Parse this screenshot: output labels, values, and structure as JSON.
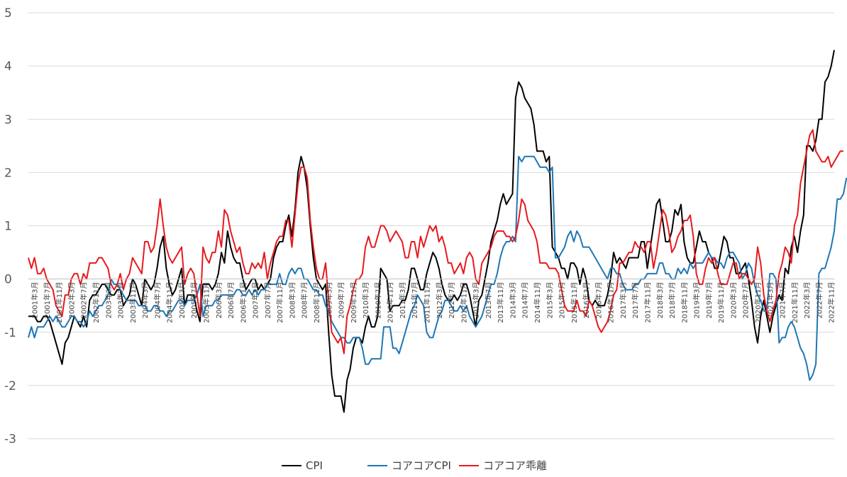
{
  "chart_data": {
    "type": "line",
    "ylim": [
      -3,
      5
    ],
    "yticks": [
      -3,
      -2,
      -1,
      0,
      1,
      2,
      3,
      4,
      5
    ],
    "grid": "horizontal",
    "legend_position": "bottom",
    "x_labels": [
      "2001年3月",
      "2001年7月",
      "2001年11月",
      "2002年3月",
      "2002年7月",
      "2002年11月",
      "2003年3月",
      "2003年7月",
      "2003年11月",
      "2004年3月",
      "2004年7月",
      "2004年11月",
      "2005年3月",
      "2005年7月",
      "2005年11月",
      "2006年3月",
      "2006年7月",
      "2006年11月",
      "2007年3月",
      "2007年7月",
      "2007年11月",
      "2008年3月",
      "2008年7月",
      "2008年11月",
      "2009年3月",
      "2009年7月",
      "2009年11月",
      "2010年3月",
      "2010年7月",
      "2010年11月",
      "2011年3月",
      "2011年7月",
      "2011年11月",
      "2012年3月",
      "2012年7月",
      "2012年11月",
      "2013年3月",
      "2013年7月",
      "2013年11月",
      "2014年3月",
      "2014年7月",
      "2014年11月",
      "2015年3月",
      "2015年7月",
      "2015年11月",
      "2016年3月",
      "2016年7月",
      "2016年11月",
      "2017年3月",
      "2017年7月",
      "2017年11月",
      "2018年3月",
      "2018年7月",
      "2018年11月",
      "2019年3月",
      "2019年7月",
      "2019年11月",
      "2020年3月",
      "2020年7月",
      "2020年11月",
      "2021年3月",
      "2021年7月",
      "2021年11月",
      "2022年3月",
      "2022年7月",
      "2022年11月"
    ],
    "x_label_start_index": 2,
    "x_label_step": 4,
    "series": [
      {
        "name": "CPI",
        "color": "#000000",
        "values": [
          -0.7,
          -0.7,
          -0.7,
          -0.8,
          -0.8,
          -0.7,
          -0.7,
          -0.8,
          -1.0,
          -1.2,
          -1.4,
          -1.6,
          -1.2,
          -1.1,
          -0.9,
          -0.7,
          -0.8,
          -0.9,
          -0.7,
          -0.9,
          -0.4,
          -0.3,
          -0.3,
          -0.2,
          -0.1,
          -0.1,
          -0.2,
          -0.3,
          -0.3,
          -0.2,
          -0.2,
          -0.5,
          -0.4,
          -0.3,
          0.0,
          -0.1,
          -0.3,
          -0.5,
          0.0,
          -0.1,
          -0.2,
          -0.1,
          0.2,
          0.6,
          0.8,
          0.2,
          -0.1,
          -0.3,
          -0.2,
          0.0,
          0.2,
          -0.5,
          -0.3,
          -0.3,
          -0.3,
          -0.6,
          -0.8,
          -0.1,
          -0.1,
          -0.1,
          -0.2,
          -0.1,
          0.1,
          0.5,
          0.3,
          0.9,
          0.6,
          0.4,
          0.3,
          0.3,
          0.0,
          -0.2,
          -0.1,
          0.0,
          0.0,
          -0.2,
          -0.1,
          -0.2,
          -0.1,
          0.0,
          0.4,
          0.6,
          0.7,
          0.7,
          1.0,
          1.2,
          0.8,
          1.3,
          2.0,
          2.3,
          2.1,
          1.7,
          1.0,
          0.4,
          0.0,
          -0.1,
          -0.2,
          -0.1,
          -1.0,
          -1.8,
          -2.2,
          -2.2,
          -2.2,
          -2.5,
          -1.9,
          -1.7,
          -1.3,
          -1.1,
          -1.1,
          -1.2,
          -0.9,
          -0.7,
          -0.9,
          -0.9,
          -0.7,
          0.2,
          0.1,
          0.0,
          -0.6,
          -0.5,
          -0.5,
          -0.5,
          -0.4,
          -0.4,
          -0.2,
          0.2,
          0.2,
          0.0,
          -0.2,
          -0.2,
          0.1,
          0.3,
          0.5,
          0.4,
          0.2,
          -0.1,
          -0.3,
          -0.4,
          -0.4,
          -0.3,
          -0.4,
          -0.3,
          -0.1,
          -0.1,
          -0.3,
          -0.6,
          -0.9,
          -0.4,
          -0.3,
          0.0,
          0.3,
          0.7,
          0.9,
          1.1,
          1.4,
          1.6,
          1.4,
          1.5,
          1.6,
          3.4,
          3.7,
          3.6,
          3.4,
          3.3,
          3.2,
          2.9,
          2.4,
          2.4,
          2.4,
          2.2,
          2.3,
          0.6,
          0.5,
          0.4,
          0.2,
          0.2,
          0.0,
          0.3,
          0.3,
          0.2,
          -0.1,
          0.2,
          0.0,
          -0.4,
          -0.5,
          -0.4,
          -0.5,
          -0.5,
          -0.5,
          -0.3,
          0.0,
          0.5,
          0.3,
          0.4,
          0.3,
          0.2,
          0.4,
          0.4,
          0.4,
          0.4,
          0.7,
          0.7,
          0.2,
          0.6,
          1.0,
          1.4,
          1.5,
          1.1,
          0.7,
          0.7,
          0.9,
          1.3,
          1.2,
          1.4,
          0.7,
          0.4,
          0.3,
          0.3,
          0.6,
          0.9,
          0.7,
          0.7,
          0.5,
          0.4,
          0.2,
          0.2,
          0.5,
          0.8,
          0.7,
          0.4,
          0.4,
          0.1,
          0.1,
          0.2,
          0.3,
          0.0,
          -0.4,
          -0.9,
          -1.2,
          -0.7,
          -0.4,
          -0.7,
          -1.0,
          -0.7,
          -0.5,
          -0.3,
          -0.4,
          0.2,
          0.1,
          0.6,
          0.8,
          0.5,
          0.9,
          1.2,
          2.5,
          2.5,
          2.4,
          2.6,
          3.0,
          3.0,
          3.7,
          3.8,
          4.0,
          4.3
        ]
      },
      {
        "name": "コアコアCPI",
        "color": "#1f77b4",
        "values": [
          -1.1,
          -0.9,
          -1.1,
          -0.9,
          -0.9,
          -0.9,
          -0.8,
          -0.7,
          -0.8,
          -0.7,
          -0.8,
          -0.9,
          -0.9,
          -0.8,
          -0.7,
          -0.7,
          -0.8,
          -0.8,
          -0.9,
          -0.8,
          -0.6,
          -0.7,
          -0.6,
          -0.5,
          -0.5,
          -0.4,
          -0.3,
          0.0,
          -0.1,
          -0.1,
          -0.2,
          -0.3,
          -0.4,
          -0.4,
          -0.4,
          -0.4,
          -0.5,
          -0.5,
          -0.5,
          -0.6,
          -0.6,
          -0.5,
          -0.5,
          -0.6,
          -0.6,
          -0.7,
          -0.6,
          -0.6,
          -0.5,
          -0.4,
          -0.4,
          -0.5,
          -0.4,
          -0.4,
          -0.4,
          -0.3,
          -0.1,
          -0.7,
          -0.5,
          -0.5,
          -0.5,
          -0.4,
          -0.4,
          -0.3,
          -0.3,
          -0.3,
          -0.3,
          -0.3,
          -0.2,
          -0.2,
          -0.3,
          -0.3,
          -0.2,
          -0.3,
          -0.2,
          -0.3,
          -0.2,
          -0.2,
          -0.1,
          -0.1,
          -0.1,
          -0.1,
          0.1,
          -0.1,
          -0.1,
          0.1,
          0.2,
          0.1,
          0.2,
          0.2,
          0.0,
          0.0,
          -0.1,
          -0.2,
          -0.2,
          -0.3,
          -0.3,
          -0.5,
          -0.6,
          -0.8,
          -0.9,
          -1.0,
          -1.1,
          -1.1,
          -1.2,
          -1.2,
          -1.1,
          -1.1,
          -1.1,
          -1.3,
          -1.6,
          -1.6,
          -1.5,
          -1.5,
          -1.5,
          -1.5,
          -0.9,
          -0.9,
          -0.9,
          -1.3,
          -1.3,
          -1.4,
          -1.2,
          -1.0,
          -0.8,
          -0.6,
          -0.5,
          -0.3,
          -0.4,
          -0.5,
          -1.0,
          -1.1,
          -1.1,
          -0.9,
          -0.7,
          -0.6,
          -0.4,
          -0.4,
          -0.5,
          -0.6,
          -0.6,
          -0.5,
          -0.6,
          -0.5,
          -0.7,
          -0.8,
          -0.9,
          -0.8,
          -0.7,
          -0.5,
          -0.3,
          -0.1,
          -0.1,
          0.1,
          0.4,
          0.6,
          0.7,
          0.7,
          0.8,
          0.7,
          2.3,
          2.2,
          2.3,
          2.3,
          2.3,
          2.3,
          2.2,
          2.1,
          2.1,
          2.1,
          2.0,
          2.1,
          0.4,
          0.4,
          0.5,
          0.6,
          0.8,
          0.9,
          0.7,
          0.9,
          0.8,
          0.6,
          0.6,
          0.6,
          0.5,
          0.4,
          0.3,
          0.2,
          0.1,
          0.0,
          0.2,
          0.2,
          0.1,
          0.1,
          -0.1,
          -0.2,
          -0.2,
          -0.2,
          -0.1,
          -0.1,
          0.0,
          0.0,
          0.1,
          0.1,
          0.1,
          0.1,
          0.3,
          0.3,
          0.1,
          0.1,
          0.0,
          0.0,
          0.2,
          0.1,
          0.2,
          0.1,
          0.3,
          0.2,
          0.3,
          0.3,
          0.3,
          0.4,
          0.5,
          0.4,
          0.4,
          0.3,
          0.3,
          0.2,
          0.4,
          0.5,
          0.5,
          0.4,
          0.3,
          0.0,
          0.1,
          0.3,
          0.2,
          -0.1,
          -0.3,
          -0.4,
          -0.6,
          -0.6,
          0.1,
          0.1,
          0.0,
          -1.2,
          -1.1,
          -1.1,
          -0.9,
          -0.8,
          -0.9,
          -1.1,
          -1.3,
          -1.4,
          -1.6,
          -1.9,
          -1.8,
          -1.6,
          0.1,
          0.2,
          0.2,
          0.4,
          0.6,
          0.9,
          1.5,
          1.5,
          1.6,
          1.9
        ]
      },
      {
        "name": "コアコア乖離",
        "color": "#e8191e",
        "values": [
          0.4,
          0.2,
          0.4,
          0.1,
          0.1,
          0.2,
          0.0,
          -0.1,
          -0.2,
          -0.5,
          -0.6,
          -0.7,
          -0.3,
          -0.3,
          0.0,
          0.1,
          0.1,
          -0.1,
          0.1,
          0.0,
          0.3,
          0.3,
          0.3,
          0.4,
          0.4,
          0.3,
          0.2,
          -0.1,
          -0.2,
          -0.1,
          0.1,
          -0.2,
          0.0,
          0.1,
          0.4,
          0.3,
          0.2,
          0.1,
          0.7,
          0.7,
          0.5,
          0.6,
          1.0,
          1.5,
          1.0,
          0.6,
          0.4,
          0.3,
          0.4,
          0.5,
          0.6,
          -0.1,
          0.1,
          0.2,
          0.1,
          -0.3,
          -0.7,
          0.6,
          0.4,
          0.3,
          0.5,
          0.5,
          0.9,
          0.6,
          1.3,
          1.2,
          0.9,
          0.7,
          0.5,
          0.6,
          0.3,
          0.1,
          0.1,
          0.3,
          0.2,
          0.3,
          0.2,
          0.5,
          0.0,
          0.3,
          0.5,
          0.7,
          0.8,
          0.8,
          1.1,
          1.1,
          0.6,
          1.2,
          1.8,
          2.1,
          2.1,
          1.9,
          1.1,
          0.6,
          0.2,
          0.0,
          0.0,
          0.3,
          -0.4,
          -1.0,
          -1.1,
          -1.2,
          -1.1,
          -1.4,
          -0.7,
          -0.5,
          -0.2,
          0.0,
          0.0,
          0.1,
          0.6,
          0.8,
          0.6,
          0.6,
          0.8,
          1.0,
          1.0,
          0.9,
          0.7,
          0.8,
          0.9,
          0.8,
          0.7,
          0.4,
          0.4,
          0.7,
          0.7,
          0.4,
          0.8,
          0.6,
          0.8,
          1.0,
          0.9,
          1.0,
          0.7,
          0.8,
          0.6,
          0.3,
          0.3,
          0.1,
          0.2,
          0.3,
          0.1,
          0.4,
          0.5,
          0.4,
          0.0,
          -0.1,
          0.3,
          0.4,
          0.5,
          0.6,
          0.8,
          0.9,
          0.9,
          0.9,
          0.8,
          0.8,
          0.7,
          0.8,
          1.1,
          1.5,
          1.4,
          1.1,
          1.0,
          0.9,
          0.7,
          0.3,
          0.3,
          0.3,
          0.2,
          0.2,
          0.2,
          0.1,
          -0.2,
          -0.5,
          -0.6,
          -0.6,
          -0.6,
          -0.4,
          -0.6,
          -0.6,
          -0.7,
          -0.4,
          -0.5,
          -0.7,
          -0.9,
          -1.0,
          -0.9,
          -0.8,
          -0.6,
          -0.3,
          -0.2,
          0.3,
          0.3,
          0.4,
          0.5,
          0.5,
          0.7,
          0.6,
          0.6,
          0.5,
          0.7,
          0.7,
          0.2,
          0.5,
          0.9,
          1.3,
          1.2,
          0.9,
          0.5,
          0.6,
          0.8,
          0.9,
          1.1,
          1.1,
          1.2,
          0.8,
          0.1,
          -0.1,
          -0.1,
          0.2,
          0.4,
          0.3,
          0.4,
          0.1,
          -0.1,
          -0.1,
          -0.1,
          0.1,
          0.3,
          0.3,
          0.0,
          0.1,
          0.1,
          0.0,
          -0.1,
          0.0,
          0.6,
          0.3,
          -0.3,
          -0.6,
          -0.8,
          -0.6,
          -0.4,
          0.1,
          0.3,
          0.6,
          0.5,
          0.3,
          1.0,
          1.2,
          1.8,
          2.1,
          2.4,
          2.7,
          2.8,
          2.4,
          2.3,
          2.2,
          2.2,
          2.3,
          2.1,
          2.2,
          2.3,
          2.4,
          2.4
        ]
      }
    ]
  }
}
